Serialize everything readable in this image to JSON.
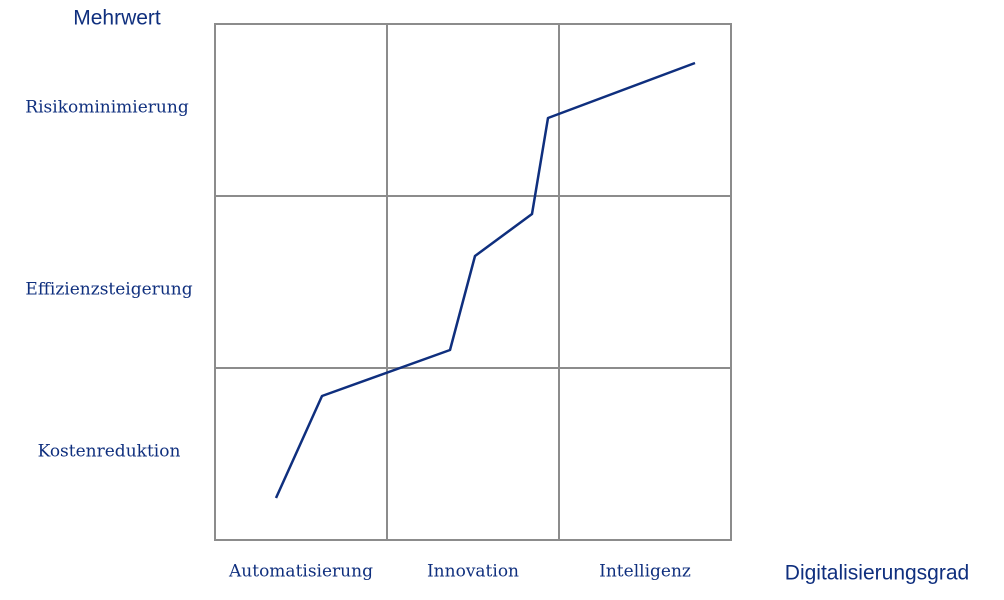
{
  "y_axis": {
    "title": "Mehrwert",
    "levels": [
      "Risikominimierung",
      "Effizienzsteigerung",
      "Kostenreduktion"
    ]
  },
  "x_axis": {
    "title": "Digitalisierungsgrad",
    "levels": [
      "Automatisierung",
      "Innovation",
      "Intelligenz"
    ]
  }
}
